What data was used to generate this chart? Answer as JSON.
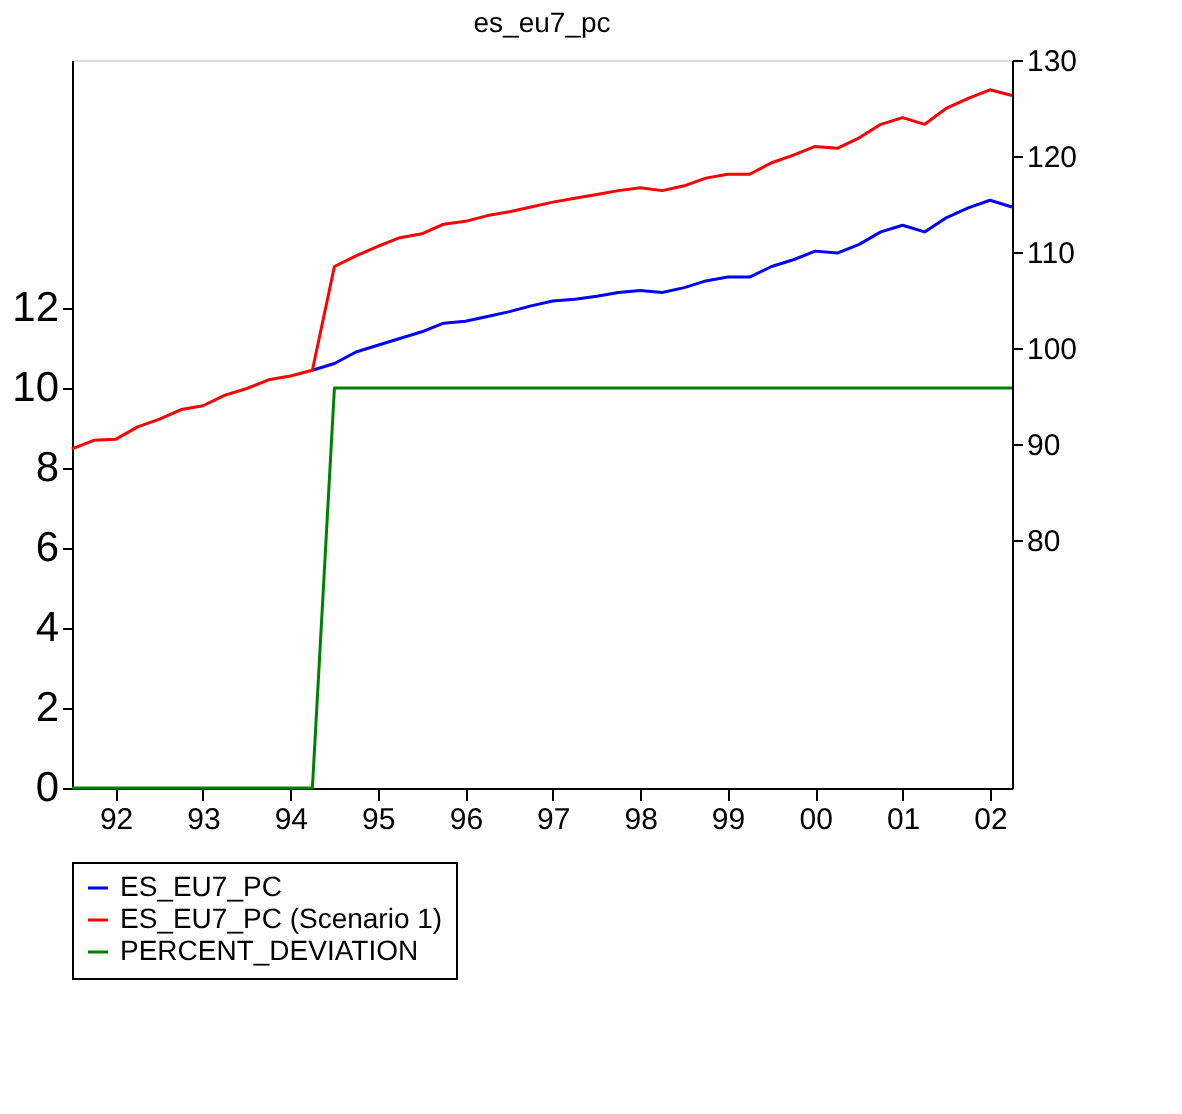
{
  "chart_data": {
    "type": "line",
    "title": "es_eu7_pc",
    "x": [
      "1992-01",
      "1992-04",
      "1992-07",
      "1992-10",
      "1993-01",
      "1993-04",
      "1993-07",
      "1993-10",
      "1994-01",
      "1994-04",
      "1994-07",
      "1994-10",
      "1995-01",
      "1995-04",
      "1995-07",
      "1995-10",
      "1996-01",
      "1996-04",
      "1996-07",
      "1996-10",
      "1997-01",
      "1997-04",
      "1997-07",
      "1997-10",
      "1998-01",
      "1998-04",
      "1998-07",
      "1998-10",
      "1999-01",
      "1999-04",
      "1999-07",
      "1999-10",
      "2000-01",
      "2000-04",
      "2000-07",
      "2000-10",
      "2001-01",
      "2001-04",
      "2001-07",
      "2001-10",
      "2002-01",
      "2002-04",
      "2002-07",
      "2002-10"
    ],
    "series": [
      {
        "name": "ES_EU7_PC",
        "color": "#0000ff",
        "axis": "y2",
        "values": [
          null,
          null,
          null,
          null,
          null,
          null,
          null,
          null,
          null,
          null,
          null,
          97.7,
          98.4,
          99.6,
          100.3,
          101.0,
          101.7,
          102.6,
          102.8,
          103.3,
          103.8,
          104.4,
          104.9,
          105.1,
          105.4,
          105.8,
          106.0,
          105.8,
          106.3,
          107.0,
          107.4,
          107.4,
          108.5,
          109.2,
          110.1,
          109.9,
          110.8,
          112.1,
          112.8,
          112.1,
          113.6,
          114.6,
          115.4,
          114.7
        ]
      },
      {
        "name": "ES_EU7_PC (Scenario 1)",
        "color": "#ff0000",
        "axis": "y2",
        "values": [
          89.5,
          90.4,
          90.5,
          91.8,
          92.6,
          93.6,
          94.0,
          95.1,
          95.8,
          96.7,
          97.1,
          97.7,
          108.5,
          109.6,
          110.6,
          111.5,
          111.9,
          112.9,
          113.2,
          113.8,
          114.2,
          114.7,
          115.2,
          115.6,
          116.0,
          116.4,
          116.7,
          116.4,
          116.9,
          117.7,
          118.1,
          118.1,
          119.3,
          120.1,
          121.0,
          120.8,
          121.9,
          123.3,
          124.0,
          123.3,
          125.0,
          126.0,
          126.9,
          126.3
        ]
      },
      {
        "name": "PERCENT_DEVIATION",
        "color": "#008000",
        "axis": "y",
        "values": [
          0,
          0,
          0,
          0,
          0,
          0,
          0,
          0,
          0,
          0,
          0,
          0,
          10,
          10,
          10,
          10,
          10,
          10,
          10,
          10,
          10,
          10,
          10,
          10,
          10,
          10,
          10,
          10,
          10,
          10,
          10,
          10,
          10,
          10,
          10,
          10,
          10,
          10,
          10,
          10,
          10,
          10,
          10,
          10
        ]
      }
    ],
    "xlim": [
      "1992-01",
      "2002-10"
    ],
    "xticks": [
      {
        "value": "1992-07",
        "label": "92"
      },
      {
        "value": "1993-07",
        "label": "93"
      },
      {
        "value": "1994-07",
        "label": "94"
      },
      {
        "value": "1995-07",
        "label": "95"
      },
      {
        "value": "1996-07",
        "label": "96"
      },
      {
        "value": "1997-07",
        "label": "97"
      },
      {
        "value": "1998-07",
        "label": "98"
      },
      {
        "value": "1999-07",
        "label": "99"
      },
      {
        "value": "2000-07",
        "label": "00"
      },
      {
        "value": "2001-07",
        "label": "01"
      },
      {
        "value": "2002-07",
        "label": "02"
      }
    ],
    "ylim": [
      0,
      18.2
    ],
    "yticks": [
      0,
      2,
      4,
      6,
      8,
      10,
      12
    ],
    "y2lim": [
      54.2,
      130
    ],
    "y2ticks": [
      80,
      90,
      100,
      110,
      120,
      130
    ],
    "grid": false,
    "legend": "bottom",
    "marker": "none",
    "line_style": "solid"
  }
}
